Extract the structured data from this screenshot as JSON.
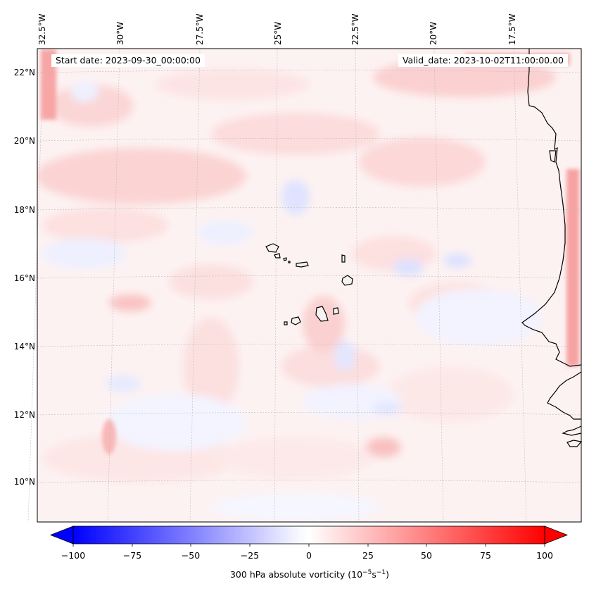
{
  "map": {
    "start_date": "Start date: 2023-09-30_00:00:00",
    "valid_date": "Valid_date: 2023-10-02T11:00:00.00",
    "longitude_labels": [
      "32.5°W",
      "30°W",
      "27.5°W",
      "25°W",
      "22.5°W",
      "20°W",
      "17.5°W"
    ],
    "latitude_labels": [
      "22°N",
      "20°N",
      "18°N",
      "16°N",
      "14°N",
      "12°N",
      "10°N"
    ],
    "field": "300 hPa absolute vorticity",
    "colorbar": {
      "ticks": [
        "−100",
        "−75",
        "−50",
        "−25",
        "0",
        "25",
        "50",
        "75",
        "100"
      ],
      "label_text": "300 hPa absolute vorticity (10",
      "label_exp1": "−5",
      "label_unit": "s",
      "label_exp2": "−1",
      "label_close": ")",
      "min_color": "#0000ff",
      "mid_color": "#ffffff",
      "max_color": "#ff0000",
      "extend": "both"
    },
    "colors": {
      "coastline": "#000000",
      "gridline": "#bbbbbb"
    }
  }
}
